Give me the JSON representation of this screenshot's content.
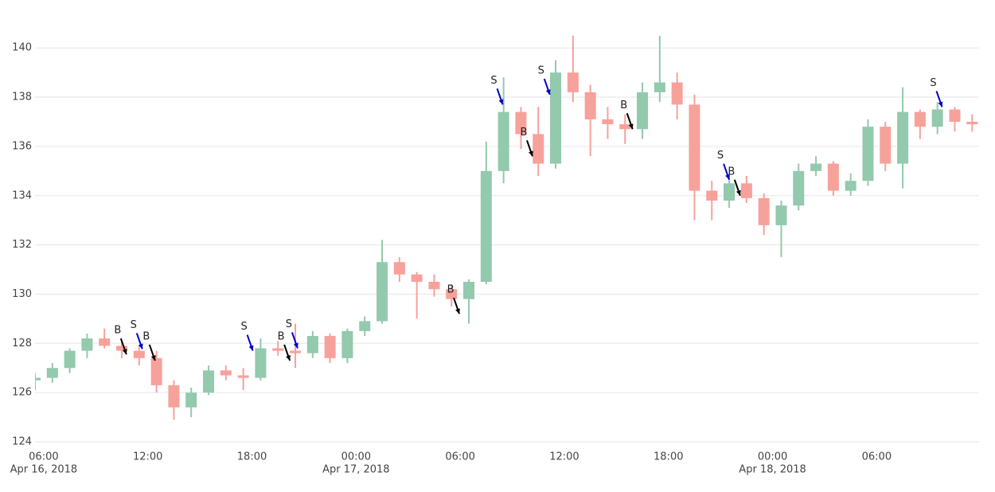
{
  "chart_data": {
    "type": "candlestick",
    "x": [
      "2018-04-16 05:30",
      "2018-04-16 06:30",
      "2018-04-16 07:30",
      "2018-04-16 08:30",
      "2018-04-16 09:30",
      "2018-04-16 10:30",
      "2018-04-16 11:30",
      "2018-04-16 12:30",
      "2018-04-16 13:30",
      "2018-04-16 14:30",
      "2018-04-16 15:30",
      "2018-04-16 16:30",
      "2018-04-16 17:30",
      "2018-04-16 18:30",
      "2018-04-16 19:30",
      "2018-04-16 20:30",
      "2018-04-16 21:30",
      "2018-04-16 22:30",
      "2018-04-16 23:30",
      "2018-04-17 00:30",
      "2018-04-17 01:30",
      "2018-04-17 02:30",
      "2018-04-17 03:30",
      "2018-04-17 04:30",
      "2018-04-17 05:30",
      "2018-04-17 06:30",
      "2018-04-17 07:30",
      "2018-04-17 08:30",
      "2018-04-17 09:30",
      "2018-04-17 10:30",
      "2018-04-17 11:30",
      "2018-04-17 12:30",
      "2018-04-17 13:30",
      "2018-04-17 14:30",
      "2018-04-17 15:30",
      "2018-04-17 16:30",
      "2018-04-17 17:30",
      "2018-04-17 18:30",
      "2018-04-17 19:30",
      "2018-04-17 20:30",
      "2018-04-17 21:30",
      "2018-04-17 22:30",
      "2018-04-17 23:30",
      "2018-04-18 00:30",
      "2018-04-18 01:30",
      "2018-04-18 02:30",
      "2018-04-18 03:30",
      "2018-04-18 04:30",
      "2018-04-18 05:30",
      "2018-04-18 06:30",
      "2018-04-18 07:30",
      "2018-04-18 08:30",
      "2018-04-18 09:30",
      "2018-04-18 10:30",
      "2018-04-18 11:30"
    ],
    "open": [
      126.5,
      126.6,
      127.0,
      127.7,
      128.2,
      127.9,
      127.7,
      127.4,
      126.3,
      125.4,
      126.0,
      126.9,
      126.7,
      126.6,
      127.8,
      127.7,
      127.6,
      128.3,
      127.4,
      128.5,
      128.9,
      131.3,
      130.8,
      130.5,
      130.2,
      129.8,
      130.5,
      135.0,
      137.4,
      136.5,
      135.3,
      139.0,
      138.2,
      137.1,
      136.9,
      136.7,
      138.2,
      138.6,
      137.7,
      134.2,
      133.8,
      134.5,
      133.9,
      132.8,
      133.6,
      135.0,
      135.3,
      134.2,
      134.6,
      136.8,
      135.3,
      137.4,
      136.8,
      137.5,
      137.0
    ],
    "high": [
      126.8,
      127.2,
      127.8,
      128.4,
      128.6,
      128.1,
      127.9,
      127.7,
      126.5,
      126.2,
      127.1,
      127.1,
      127.0,
      128.2,
      128.1,
      128.8,
      128.5,
      128.4,
      128.6,
      129.1,
      132.2,
      131.5,
      130.9,
      130.8,
      130.4,
      130.6,
      136.2,
      138.8,
      137.6,
      137.6,
      139.5,
      140.5,
      138.5,
      137.6,
      137.3,
      138.6,
      140.5,
      139.0,
      138.1,
      134.6,
      134.8,
      134.8,
      134.1,
      133.8,
      135.3,
      135.6,
      135.4,
      134.9,
      137.1,
      137.0,
      138.4,
      137.5,
      137.8,
      137.6,
      137.3
    ],
    "low": [
      126.1,
      126.4,
      126.8,
      127.4,
      127.8,
      127.4,
      127.1,
      126.0,
      124.9,
      125.0,
      125.9,
      126.5,
      126.1,
      126.5,
      127.5,
      127.0,
      127.4,
      127.2,
      127.2,
      128.3,
      128.8,
      130.5,
      129.0,
      129.9,
      129.5,
      128.8,
      130.4,
      134.5,
      135.9,
      134.8,
      135.1,
      137.8,
      135.6,
      136.3,
      136.1,
      136.3,
      137.8,
      137.1,
      133.0,
      133.0,
      133.5,
      133.7,
      132.4,
      131.5,
      133.4,
      134.8,
      134.0,
      134.0,
      134.4,
      135.0,
      134.3,
      136.3,
      136.5,
      136.6,
      136.6
    ],
    "close": [
      126.6,
      127.0,
      127.7,
      128.2,
      127.9,
      127.7,
      127.4,
      126.3,
      125.4,
      126.0,
      126.9,
      126.7,
      126.6,
      127.8,
      127.7,
      127.6,
      128.3,
      127.4,
      128.5,
      128.9,
      131.3,
      130.8,
      130.5,
      130.2,
      129.8,
      130.5,
      135.0,
      137.4,
      136.5,
      135.3,
      139.0,
      138.2,
      137.1,
      136.9,
      136.7,
      138.2,
      138.6,
      137.7,
      134.2,
      133.8,
      134.5,
      133.9,
      132.8,
      133.6,
      135.0,
      135.3,
      134.2,
      134.6,
      136.8,
      135.3,
      137.4,
      136.8,
      137.5,
      137.0,
      136.9
    ],
    "increasing_color": "#93c9ad",
    "decreasing_color": "#f7a19b",
    "xlim": [
      "2018-04-16 05:30",
      "2018-04-18 11:54"
    ],
    "xticks": [
      {
        "value": "2018-04-16 06:00",
        "label": "06:00",
        "date": "Apr 16, 2018"
      },
      {
        "value": "2018-04-16 12:00",
        "label": "12:00"
      },
      {
        "value": "2018-04-16 18:00",
        "label": "18:00"
      },
      {
        "value": "2018-04-17 00:00",
        "label": "00:00",
        "date": "Apr 17, 2018"
      },
      {
        "value": "2018-04-17 06:00",
        "label": "06:00"
      },
      {
        "value": "2018-04-17 12:00",
        "label": "12:00"
      },
      {
        "value": "2018-04-17 18:00",
        "label": "18:00"
      },
      {
        "value": "2018-04-18 00:00",
        "label": "00:00",
        "date": "Apr 18, 2018"
      },
      {
        "value": "2018-04-18 06:00",
        "label": "06:00"
      }
    ],
    "ylim": [
      124,
      141.3
    ],
    "yticks": [
      124,
      126,
      128,
      130,
      132,
      134,
      136,
      138,
      140
    ],
    "grid": true,
    "annotations": [
      {
        "x": "2018-04-16 10:46",
        "y": 127.55,
        "text": "B",
        "color": "#000000"
      },
      {
        "x": "2018-04-16 11:41",
        "y": 127.77,
        "text": "S",
        "color": "#0000cc"
      },
      {
        "x": "2018-04-16 12:25",
        "y": 127.3,
        "text": "B",
        "color": "#000000"
      },
      {
        "x": "2018-04-16 18:03",
        "y": 127.7,
        "text": "S",
        "color": "#0000cc"
      },
      {
        "x": "2018-04-16 20:11",
        "y": 127.3,
        "text": "B",
        "color": "#000000"
      },
      {
        "x": "2018-04-16 20:38",
        "y": 127.8,
        "text": "S",
        "color": "#0000cc"
      },
      {
        "x": "2018-04-17 05:57",
        "y": 129.2,
        "text": "B",
        "color": "#000000"
      },
      {
        "x": "2018-04-17 08:27",
        "y": 137.7,
        "text": "S",
        "color": "#0000cc"
      },
      {
        "x": "2018-04-17 10:10",
        "y": 135.6,
        "text": "B",
        "color": "#000000"
      },
      {
        "x": "2018-04-17 11:10",
        "y": 138.1,
        "text": "S",
        "color": "#0000cc"
      },
      {
        "x": "2018-04-17 15:56",
        "y": 136.7,
        "text": "B",
        "color": "#000000"
      },
      {
        "x": "2018-04-17 21:30",
        "y": 134.65,
        "text": "S",
        "color": "#0000cc"
      },
      {
        "x": "2018-04-17 22:08",
        "y": 134.0,
        "text": "B",
        "color": "#000000"
      },
      {
        "x": "2018-04-18 09:46",
        "y": 137.6,
        "text": "S",
        "color": "#0000cc"
      }
    ]
  }
}
